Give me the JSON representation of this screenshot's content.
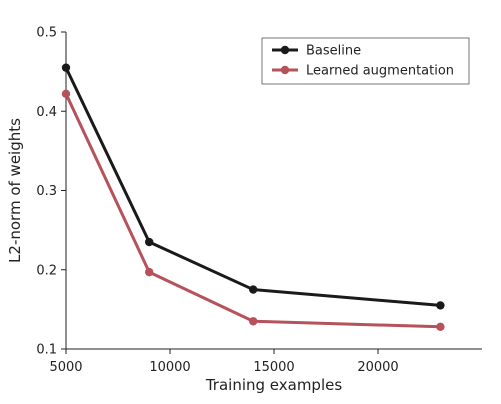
{
  "chart_data": {
    "type": "line",
    "xlabel": "Training examples",
    "ylabel": "L2-norm of weights",
    "xlim": [
      5000,
      25000
    ],
    "ylim": [
      0.1,
      0.5
    ],
    "xticks": [
      "5000",
      "10000",
      "15000",
      "20000"
    ],
    "yticks": [
      "0.1",
      "0.2",
      "0.3",
      "0.4",
      "0.5"
    ],
    "grid": false,
    "legend_position": "top-right",
    "series": [
      {
        "name": "Baseline",
        "color": "#1a1a1a",
        "x": [
          5000,
          9000,
          14000,
          23000
        ],
        "y": [
          0.455,
          0.235,
          0.175,
          0.155
        ]
      },
      {
        "name": "Learned augmentation",
        "color": "#b5525a",
        "x": [
          5000,
          9000,
          14000,
          23000
        ],
        "y": [
          0.422,
          0.197,
          0.135,
          0.128
        ]
      }
    ]
  }
}
